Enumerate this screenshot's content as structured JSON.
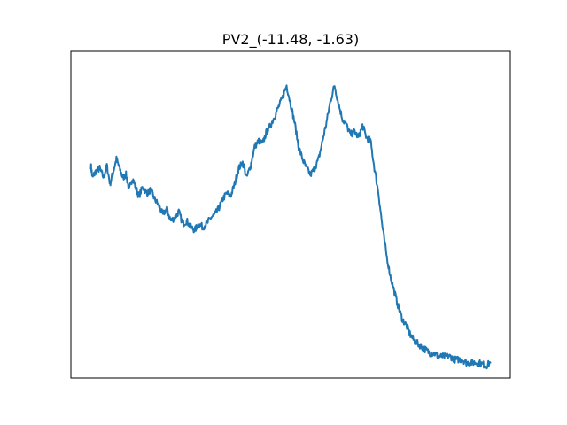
{
  "chart_data": {
    "type": "line",
    "title": "PV2_(-11.48, -1.63)",
    "xlabel": "",
    "ylabel": "",
    "xticks_visible": false,
    "yticks_visible": false,
    "grid": false,
    "xlim": [
      -0.05,
      1.05
    ],
    "ylim": [
      -0.03,
      1.03
    ],
    "series": [
      {
        "color": "#1f77b4",
        "x": [
          0.0,
          0.004,
          0.012,
          0.022,
          0.032,
          0.04,
          0.048,
          0.056,
          0.064,
          0.072,
          0.08,
          0.088,
          0.096,
          0.104,
          0.112,
          0.12,
          0.13,
          0.14,
          0.15,
          0.16,
          0.17,
          0.18,
          0.19,
          0.2,
          0.21,
          0.22,
          0.23,
          0.24,
          0.25,
          0.26,
          0.27,
          0.28,
          0.29,
          0.3,
          0.31,
          0.32,
          0.33,
          0.34,
          0.35,
          0.36,
          0.37,
          0.38,
          0.39,
          0.4,
          0.41,
          0.42,
          0.43,
          0.44,
          0.45,
          0.46,
          0.47,
          0.48,
          0.49,
          0.5,
          0.51,
          0.52,
          0.53,
          0.54,
          0.55,
          0.56,
          0.57,
          0.58,
          0.59,
          0.6,
          0.61,
          0.62,
          0.63,
          0.64,
          0.65,
          0.66,
          0.67,
          0.68,
          0.69,
          0.7,
          0.71,
          0.72,
          0.73,
          0.74,
          0.75,
          0.76,
          0.77,
          0.78,
          0.79,
          0.8,
          0.81,
          0.82,
          0.83,
          0.84,
          0.85,
          0.86,
          0.87,
          0.88,
          0.89,
          0.9,
          0.91,
          0.92,
          0.93,
          0.94,
          0.95,
          0.96,
          0.97,
          0.98,
          0.99,
          1.0
        ],
        "y": [
          0.66,
          0.62,
          0.64,
          0.65,
          0.62,
          0.66,
          0.6,
          0.64,
          0.68,
          0.65,
          0.62,
          0.63,
          0.58,
          0.62,
          0.59,
          0.56,
          0.59,
          0.57,
          0.58,
          0.55,
          0.53,
          0.5,
          0.52,
          0.48,
          0.49,
          0.51,
          0.47,
          0.48,
          0.46,
          0.45,
          0.47,
          0.46,
          0.47,
          0.49,
          0.5,
          0.52,
          0.55,
          0.57,
          0.56,
          0.6,
          0.65,
          0.67,
          0.62,
          0.66,
          0.72,
          0.74,
          0.73,
          0.77,
          0.79,
          0.82,
          0.85,
          0.88,
          0.92,
          0.86,
          0.8,
          0.72,
          0.68,
          0.65,
          0.63,
          0.65,
          0.68,
          0.74,
          0.8,
          0.87,
          0.92,
          0.86,
          0.81,
          0.79,
          0.76,
          0.77,
          0.75,
          0.79,
          0.75,
          0.74,
          0.65,
          0.57,
          0.46,
          0.37,
          0.3,
          0.25,
          0.2,
          0.16,
          0.14,
          0.11,
          0.09,
          0.08,
          0.07,
          0.06,
          0.05,
          0.05,
          0.04,
          0.04,
          0.04,
          0.04,
          0.03,
          0.03,
          0.03,
          0.02,
          0.02,
          0.02,
          0.02,
          0.015,
          0.01,
          0.02
        ]
      }
    ]
  }
}
